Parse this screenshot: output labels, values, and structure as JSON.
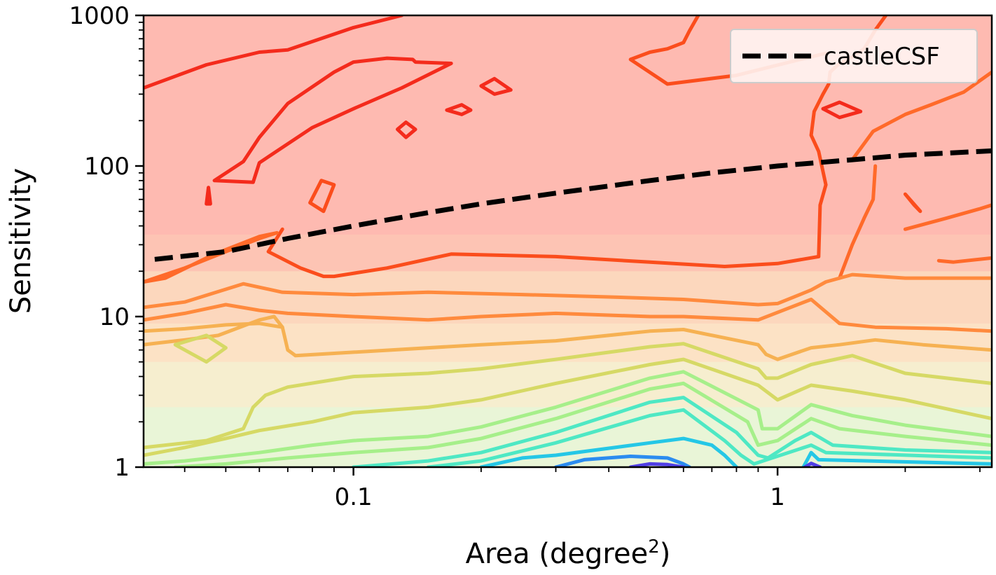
{
  "chart_data": {
    "type": "contour",
    "xlabel": "Area (degree",
    "xlabel_sup": "2",
    "xlabel_close": ")",
    "ylabel": "Sensitivity",
    "x_scale": "log",
    "y_scale": "log",
    "xlim": [
      0.032,
      3.2
    ],
    "ylim": [
      1,
      1000
    ],
    "x_ticks": [
      {
        "value": 0.1,
        "label": "0.1"
      },
      {
        "value": 1,
        "label": "1"
      }
    ],
    "y_ticks": [
      {
        "value": 1,
        "label": "1"
      },
      {
        "value": 10,
        "label": "10"
      },
      {
        "value": 100,
        "label": "100"
      },
      {
        "value": 1000,
        "label": "1000"
      }
    ],
    "legend": {
      "position": "top-right",
      "entries": [
        {
          "label": "castleCSF",
          "style": "dashed",
          "color": "#000000"
        }
      ]
    },
    "series": [
      {
        "name": "castleCSF",
        "style": "dashed",
        "color": "#000000",
        "x": [
          0.034,
          0.05,
          0.07,
          0.1,
          0.15,
          0.2,
          0.3,
          0.5,
          0.7,
          1.0,
          1.5,
          2.0,
          3.2
        ],
        "y": [
          24,
          27,
          33,
          40,
          49,
          56,
          66,
          80,
          90,
          100,
          110,
          118,
          126
        ]
      }
    ],
    "contour_levels": [
      {
        "color": "#f42b1c",
        "fill": "#feb1ac",
        "lines": [
          {
            "x": [
              0.032,
              0.045,
              0.06,
              0.07,
              0.1,
              0.13
            ],
            "y": [
              330,
              470,
              570,
              590,
              830,
              1000
            ]
          },
          {
            "x": [
              0.047,
              0.055,
              0.06,
              0.07,
              0.09,
              0.1,
              0.12,
              0.138,
              0.14,
              0.17,
              0.13,
              0.1,
              0.08,
              0.06,
              0.058,
              0.047
            ],
            "y": [
              80,
              107,
              155,
              260,
              420,
              490,
              520,
              510,
              490,
              480,
              330,
              240,
              180,
              105,
              78,
              80
            ]
          },
          {
            "x": [
              0.045,
              0.0455,
              0.046,
              0.045
            ],
            "y": [
              56,
              72,
              56,
              56
            ]
          },
          {
            "x": [
              0.127,
              0.133,
              0.14,
              0.133,
              0.127
            ],
            "y": [
              175,
              195,
              175,
              155,
              175
            ]
          },
          {
            "x": [
              0.166,
              0.18,
              0.189,
              0.18,
              0.166
            ],
            "y": [
              235,
              255,
              235,
              220,
              235
            ]
          },
          {
            "x": [
              0.2,
              0.215,
              0.235,
              0.215,
              0.2
            ],
            "y": [
              340,
              380,
              320,
              300,
              340
            ]
          },
          {
            "x": [
              1.28,
              1.4,
              1.57,
              1.4,
              1.28
            ],
            "y": [
              240,
              265,
              230,
              210,
              240
            ]
          }
        ]
      },
      {
        "color": "#fb4d1c",
        "fill": "#fdc1b3",
        "lines": [
          {
            "x": [
              0.068,
              0.063,
              0.075,
              0.085,
              0.09,
              0.12,
              0.17,
              0.3,
              0.5,
              0.75,
              1.0,
              1.25,
              1.26,
              1.3,
              1.25,
              1.2,
              1.22,
              1.28,
              1.32,
              1.33,
              1.4,
              1.5,
              1.6,
              1.7,
              1.8
            ],
            "y": [
              38,
              27,
              21,
              18.5,
              18.5,
              21,
              26,
              25,
              23,
              21.5,
              22.5,
              25,
              55,
              75,
              125,
              160,
              230,
              300,
              350,
              420,
              480,
              530,
              600,
              800,
              1000
            ]
          },
          {
            "x": [
              0.079,
              0.084,
              0.09,
              0.085,
              0.079
            ],
            "y": [
              57,
              80,
              75,
              50,
              57
            ]
          },
          {
            "x": [
              0.65,
              0.62,
              0.6,
              0.55,
              0.5,
              0.45,
              0.55,
              0.8,
              1.1,
              1.3
            ],
            "y": [
              1000,
              790,
              660,
              600,
              570,
              510,
              350,
              400,
              500,
              560
            ]
          },
          {
            "x": [
              2.0,
              2.1,
              2.17,
              2.0
            ],
            "y": [
              65,
              55,
              50,
              65
            ]
          }
        ]
      },
      {
        "color": "#ff6a2a",
        "fill": "#fdcfb8",
        "lines": [
          {
            "x": [
              0.032,
              0.036,
              0.047,
              0.06,
              0.066,
              0.06,
              0.05,
              0.04,
              0.032
            ],
            "y": [
              17,
              18,
              26,
              34,
              36,
              33,
              27,
              21,
              17
            ]
          },
          {
            "x": [
              1.5,
              1.68,
              2.0,
              2.3,
              2.75,
              3.2
            ],
            "y": [
              110,
              170,
              220,
              255,
              310,
              420
            ]
          },
          {
            "x": [
              1.4,
              1.5,
              1.6,
              1.68,
              1.7
            ],
            "y": [
              18,
              30,
              45,
              60,
              100
            ]
          },
          {
            "x": [
              2.0,
              2.5,
              3.0,
              3.2
            ],
            "y": [
              38,
              45,
              52,
              55
            ]
          },
          {
            "x": [
              2.4,
              2.6,
              3.2
            ],
            "y": [
              23.5,
              23,
              24.5
            ]
          }
        ]
      },
      {
        "color": "#ff8a3d",
        "fill": "#fcd7bd",
        "lines": [
          {
            "x": [
              0.032,
              0.04,
              0.055,
              0.068,
              0.1,
              0.15,
              0.25,
              0.4,
              0.6,
              0.9,
              1.0,
              1.2,
              1.3,
              1.5,
              2.0,
              3.2
            ],
            "y": [
              11.5,
              12.5,
              16.5,
              14.5,
              14,
              14.5,
              14,
              13.5,
              13,
              12,
              12.2,
              15,
              17,
              19,
              18,
              18
            ]
          },
          {
            "x": [
              0.032,
              0.04,
              0.05,
              0.06,
              0.07,
              0.1,
              0.15,
              0.2,
              0.3,
              0.5,
              0.6,
              0.9,
              1.2,
              1.4,
              1.7,
              2.5,
              3.2
            ],
            "y": [
              9.5,
              10.5,
              12,
              11,
              10.5,
              10,
              9.5,
              10,
              10.5,
              10,
              10,
              9.5,
              13,
              9,
              8.5,
              8.3,
              8
            ]
          }
        ]
      },
      {
        "color": "#f6b152",
        "fill": "#fbe4c7",
        "lines": [
          {
            "x": [
              0.032,
              0.04,
              0.05,
              0.06,
              0.068,
              0.07,
              0.073,
              0.1,
              0.2,
              0.3,
              0.5,
              0.6,
              0.9,
              0.94,
              1.0,
              1.2,
              1.4,
              1.7,
              2.2,
              3.2
            ],
            "y": [
              8,
              8.3,
              8.8,
              9,
              8.5,
              6,
              5.5,
              5.8,
              6.5,
              6.9,
              8,
              8.2,
              6.5,
              5.6,
              5.2,
              6.2,
              6.5,
              7,
              6.5,
              6
            ]
          },
          {
            "x": [
              0.032,
              0.04,
              0.048,
              0.06,
              0.065,
              0.068
            ],
            "y": [
              6.5,
              7,
              7.5,
              9.5,
              10,
              8.5
            ]
          }
        ]
      },
      {
        "color": "#d6d965",
        "fill": "#f4f0d0",
        "lines": [
          {
            "x": [
              0.038,
              0.045,
              0.05,
              0.045,
              0.038
            ],
            "y": [
              6.5,
              7.5,
              6.2,
              5,
              6.5
            ]
          },
          {
            "x": [
              0.032,
              0.045,
              0.055,
              0.058,
              0.062,
              0.07,
              0.1,
              0.15,
              0.2,
              0.3,
              0.5,
              0.6,
              0.9,
              0.94,
              1.0,
              1.2,
              1.5,
              2.0,
              3.2
            ],
            "y": [
              1.35,
              1.5,
              1.8,
              2.5,
              3.0,
              3.4,
              4.0,
              4.2,
              4.5,
              5.2,
              6.3,
              6.6,
              4.5,
              3.9,
              3.9,
              4.8,
              5.5,
              4.2,
              3.6
            ]
          },
          {
            "x": [
              0.032,
              0.04,
              0.05,
              0.06,
              0.08,
              0.1,
              0.15,
              0.2,
              0.3,
              0.5,
              0.6,
              0.9,
              1.0,
              1.2,
              1.5,
              2.0,
              3.2
            ],
            "y": [
              1.2,
              1.35,
              1.55,
              1.75,
              2.0,
              2.3,
              2.5,
              2.8,
              3.6,
              4.8,
              5.2,
              3.5,
              2.8,
              3.5,
              3.2,
              2.8,
              2.1
            ]
          }
        ]
      },
      {
        "color": "#a6ef8a",
        "fill": "#e6f6d8",
        "lines": [
          {
            "x": [
              0.032,
              0.04,
              0.06,
              0.08,
              0.1,
              0.15,
              0.2,
              0.3,
              0.5,
              0.6,
              0.9,
              0.92,
              1.0,
              1.2,
              1.5,
              2.0,
              3.2
            ],
            "y": [
              1.05,
              1.1,
              1.25,
              1.4,
              1.5,
              1.6,
              1.85,
              2.5,
              3.9,
              4.3,
              2.4,
              1.8,
              1.8,
              2.6,
              2.2,
              1.9,
              1.6
            ]
          },
          {
            "x": [
              0.038,
              0.05,
              0.07,
              0.1,
              0.15,
              0.2,
              0.3,
              0.5,
              0.6,
              0.85,
              0.9,
              1.0,
              1.2,
              1.4,
              2.0,
              3.2
            ],
            "y": [
              1.0,
              1.05,
              1.15,
              1.25,
              1.35,
              1.55,
              2.1,
              3.3,
              3.6,
              2.0,
              1.4,
              1.5,
              2.1,
              1.8,
              1.6,
              1.4
            ]
          }
        ]
      },
      {
        "color": "#4ee8c4",
        "fill": "#d2f5ec",
        "lines": [
          {
            "x": [
              0.1,
              0.15,
              0.2,
              0.3,
              0.5,
              0.6,
              0.8,
              0.9,
              0.95,
              1.1,
              1.2,
              1.35,
              2.0,
              3.2
            ],
            "y": [
              1.0,
              1.1,
              1.25,
              1.7,
              2.7,
              2.9,
              1.7,
              1.2,
              1.15,
              1.5,
              1.7,
              1.4,
              1.3,
              1.25
            ]
          },
          {
            "x": [
              0.15,
              0.2,
              0.3,
              0.5,
              0.6,
              0.75,
              0.82,
              0.88,
              1.2,
              1.3,
              3.2
            ],
            "y": [
              1.0,
              1.1,
              1.45,
              2.2,
              2.4,
              1.5,
              1.2,
              1.05,
              1.4,
              1.25,
              1.15
            ]
          }
        ]
      },
      {
        "color": "#25c7e6",
        "fill": "#bfeff4",
        "lines": [
          {
            "x": [
              0.2,
              0.25,
              0.3,
              0.5,
              0.6,
              0.7,
              0.75,
              0.8
            ],
            "y": [
              1.0,
              1.15,
              1.2,
              1.45,
              1.55,
              1.4,
              1.2,
              1.0
            ]
          },
          {
            "x": [
              1.15,
              1.2,
              1.25,
              3.2
            ],
            "y": [
              1.0,
              1.25,
              1.12,
              1.05
            ]
          }
        ]
      },
      {
        "color": "#2b8cf0",
        "fill": "#b8dcf6",
        "lines": [
          {
            "x": [
              0.3,
              0.35,
              0.45,
              0.55,
              0.6,
              0.62
            ],
            "y": [
              1.0,
              1.12,
              1.18,
              1.15,
              1.05,
              1.0
            ]
          }
        ]
      },
      {
        "color": "#5140e6",
        "fill": "#b7b7f2",
        "lines": [
          {
            "x": [
              0.45,
              0.5,
              0.55,
              0.6
            ],
            "y": [
              1.0,
              1.05,
              1.04,
              1.0
            ]
          },
          {
            "x": [
              1.16,
              1.2,
              1.26
            ],
            "y": [
              1.0,
              1.06,
              1.0
            ]
          }
        ]
      }
    ]
  }
}
